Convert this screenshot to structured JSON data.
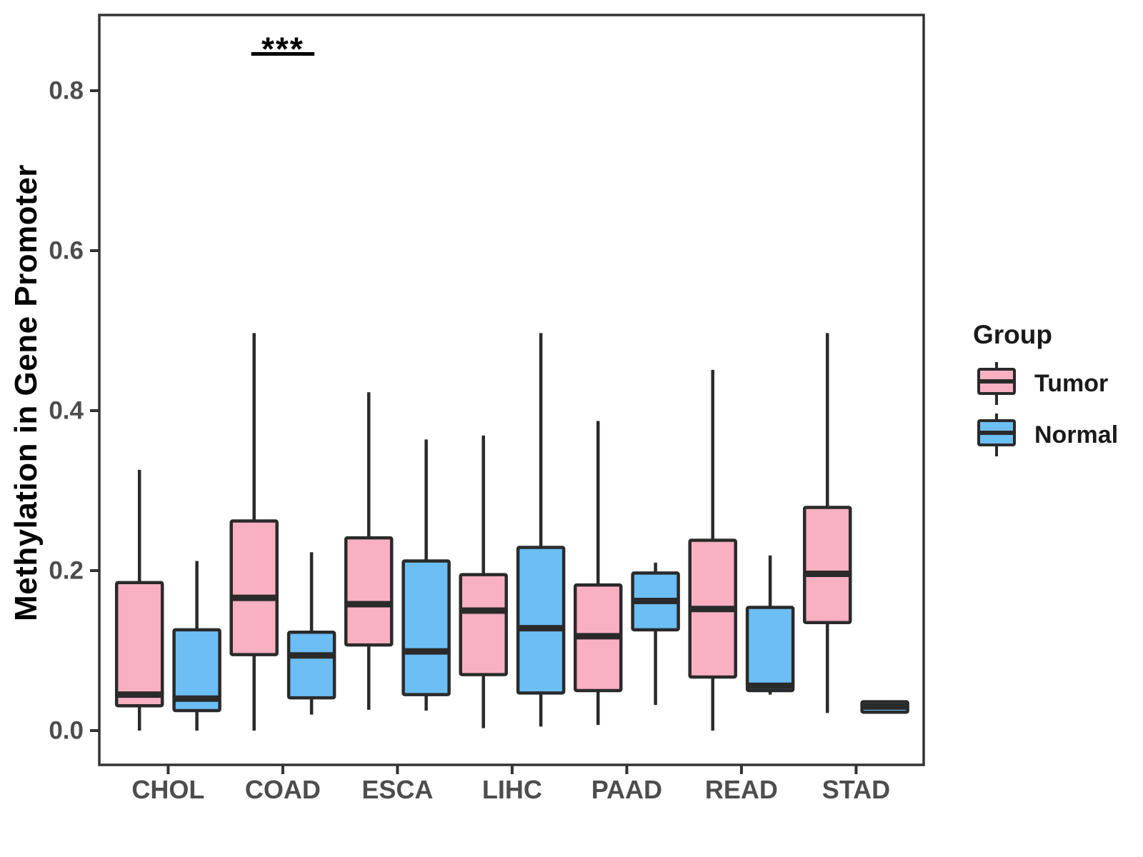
{
  "chart_data": {
    "type": "boxplot",
    "title": "",
    "xlabel": "",
    "ylabel": "Methylation in Gene Promoter",
    "categories": [
      "CHOL",
      "COAD",
      "ESCA",
      "LIHC",
      "PAAD",
      "READ",
      "STAD"
    ],
    "yticks": [
      {
        "value": 0.0,
        "label": "0.0"
      },
      {
        "value": 0.2,
        "label": "0.2"
      },
      {
        "value": 0.4,
        "label": "0.4"
      },
      {
        "value": 0.6,
        "label": "0.6"
      },
      {
        "value": 0.8,
        "label": "0.8"
      }
    ],
    "ylim": [
      -0.043,
      0.895
    ],
    "grid": false,
    "legend_position": "right",
    "legend": {
      "title": "Group",
      "items": [
        {
          "label": "Tumor",
          "color": "#F9B0C3"
        },
        {
          "label": "Normal",
          "color": "#6CBEF5"
        }
      ]
    },
    "series": [
      {
        "name": "Tumor",
        "color": "#F9B0C3",
        "boxes": [
          {
            "category": "CHOL",
            "low": 0.0,
            "q1": 0.031,
            "median": 0.045,
            "q3": 0.185,
            "high": 0.326
          },
          {
            "category": "COAD",
            "low": 0.0,
            "q1": 0.095,
            "median": 0.166,
            "q3": 0.262,
            "high": 0.497
          },
          {
            "category": "ESCA",
            "low": 0.026,
            "q1": 0.107,
            "median": 0.158,
            "q3": 0.241,
            "high": 0.423
          },
          {
            "category": "LIHC",
            "low": 0.003,
            "q1": 0.07,
            "median": 0.15,
            "q3": 0.195,
            "high": 0.369
          },
          {
            "category": "PAAD",
            "low": 0.007,
            "q1": 0.05,
            "median": 0.118,
            "q3": 0.182,
            "high": 0.387
          },
          {
            "category": "READ",
            "low": 0.0,
            "q1": 0.067,
            "median": 0.152,
            "q3": 0.238,
            "high": 0.451
          },
          {
            "category": "STAD",
            "low": 0.022,
            "q1": 0.135,
            "median": 0.196,
            "q3": 0.279,
            "high": 0.497
          }
        ]
      },
      {
        "name": "Normal",
        "color": "#6CBEF5",
        "boxes": [
          {
            "category": "CHOL",
            "low": 0.0,
            "q1": 0.025,
            "median": 0.04,
            "q3": 0.126,
            "high": 0.212
          },
          {
            "category": "COAD",
            "low": 0.02,
            "q1": 0.041,
            "median": 0.094,
            "q3": 0.123,
            "high": 0.223
          },
          {
            "category": "ESCA",
            "low": 0.025,
            "q1": 0.045,
            "median": 0.099,
            "q3": 0.212,
            "high": 0.364
          },
          {
            "category": "LIHC",
            "low": 0.005,
            "q1": 0.047,
            "median": 0.128,
            "q3": 0.229,
            "high": 0.497
          },
          {
            "category": "PAAD",
            "low": 0.032,
            "q1": 0.126,
            "median": 0.162,
            "q3": 0.197,
            "high": 0.21
          },
          {
            "category": "READ",
            "low": 0.045,
            "q1": 0.05,
            "median": 0.056,
            "q3": 0.154,
            "high": 0.219
          },
          {
            "category": "STAD",
            "low": 0.021,
            "q1": 0.023,
            "median": 0.03,
            "q3": 0.036,
            "high": 0.038
          }
        ]
      }
    ],
    "significance": [
      {
        "category": "COAD",
        "label": "***",
        "bar_value": 0.846
      }
    ],
    "colors": {
      "box_border": "#2A2A2A",
      "axis_line": "#333333",
      "axis_text": "#4D4D4D",
      "annotation": "#000000",
      "background": "#FFFFFF"
    }
  }
}
